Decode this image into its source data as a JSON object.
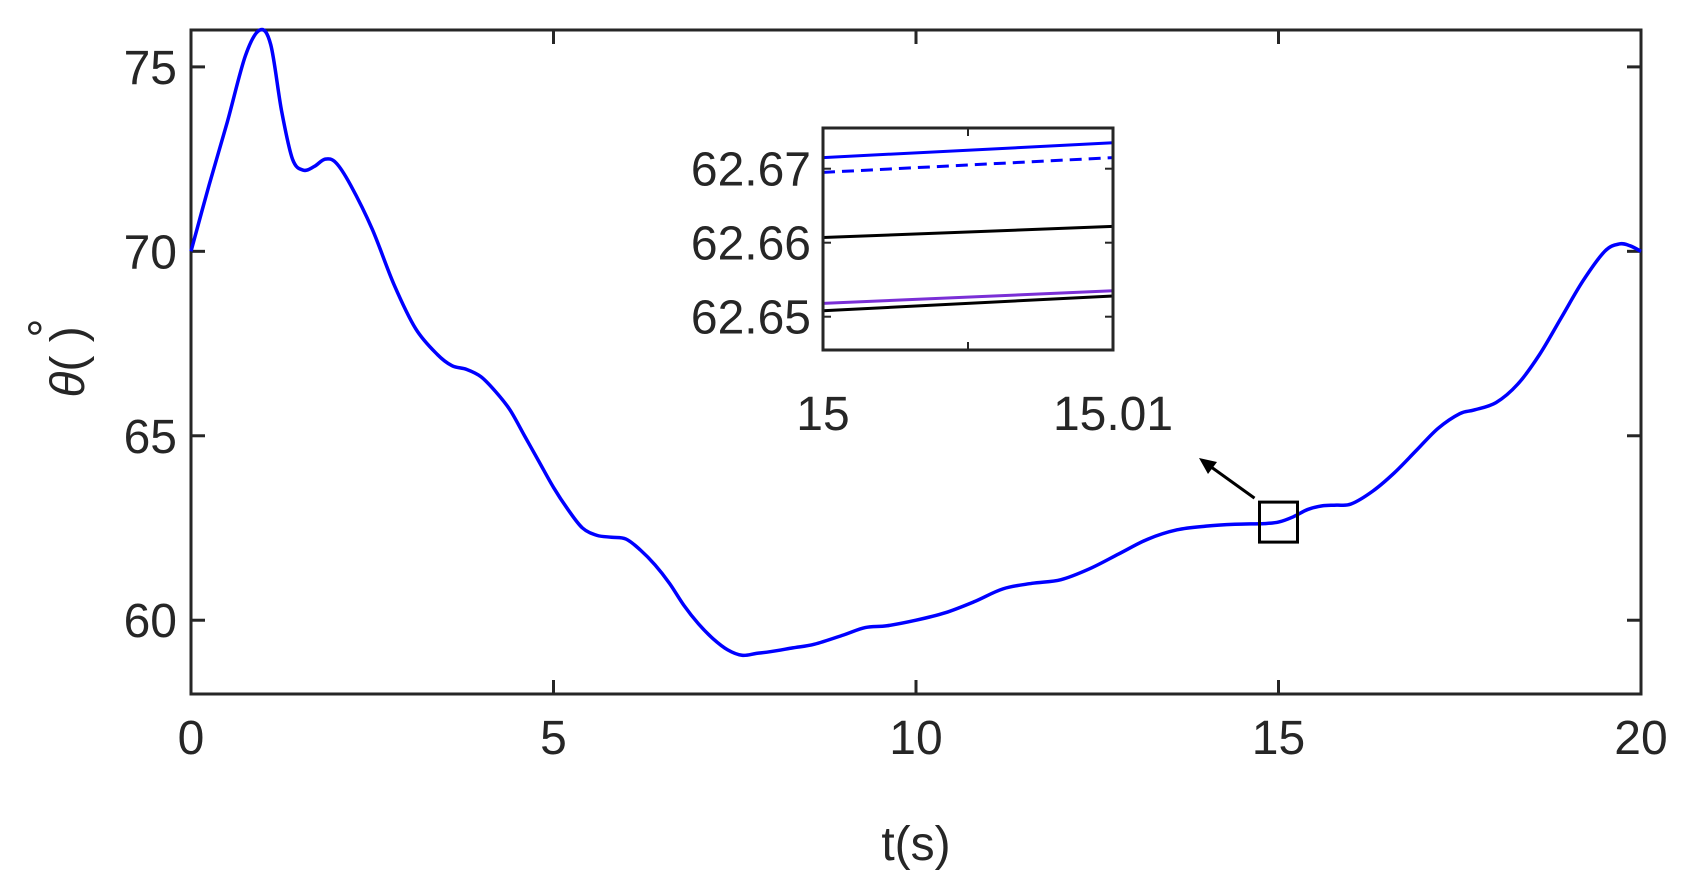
{
  "colors": {
    "series_blue": "#0000ff",
    "axis": "#262626",
    "black_line": "#000000",
    "purple_line": "#7a2fd6"
  },
  "chart_data": [
    {
      "type": "line",
      "title": "",
      "xlabel": "t(s)",
      "ylabel": "θ(°)",
      "ylabel_symbol": "θ",
      "ylabel_rest": "( )",
      "ylabel_degree": "°",
      "xlim": [
        0,
        20
      ],
      "ylim": [
        58,
        76
      ],
      "xticks": [
        0,
        5,
        10,
        15,
        20
      ],
      "xtick_labels": [
        "0",
        "5",
        "10",
        "15",
        "20"
      ],
      "yticks": [
        60,
        65,
        70,
        75
      ],
      "ytick_labels": [
        "60",
        "65",
        "70",
        "75"
      ],
      "grid": false,
      "legend": "none",
      "series": [
        {
          "color": "#0000ff",
          "style": "solid",
          "x": [
            0,
            0.25,
            0.5,
            0.75,
            0.95,
            1.1,
            1.25,
            1.4,
            1.55,
            1.7,
            1.85,
            2.0,
            2.2,
            2.5,
            2.8,
            3.1,
            3.4,
            3.6,
            3.8,
            4.0,
            4.2,
            4.4,
            4.6,
            4.8,
            5.0,
            5.2,
            5.4,
            5.6,
            5.8,
            6.0,
            6.2,
            6.4,
            6.6,
            6.8,
            7.0,
            7.2,
            7.4,
            7.6,
            7.8,
            8.0,
            8.3,
            8.6,
            9.0,
            9.3,
            9.6,
            10.0,
            10.4,
            10.8,
            11.2,
            11.6,
            12.0,
            12.4,
            12.8,
            13.2,
            13.6,
            14.0,
            14.4,
            14.8,
            15.0,
            15.2,
            15.4,
            15.6,
            15.8,
            16.0,
            16.3,
            16.6,
            16.9,
            17.2,
            17.5,
            17.7,
            18.0,
            18.3,
            18.6,
            18.9,
            19.2,
            19.5,
            19.7,
            19.85,
            20.0
          ],
          "y": [
            70.0,
            71.8,
            73.5,
            75.3,
            76.0,
            75.6,
            73.8,
            72.5,
            72.2,
            72.3,
            72.5,
            72.4,
            71.8,
            70.6,
            69.1,
            67.9,
            67.2,
            66.9,
            66.8,
            66.6,
            66.2,
            65.7,
            65.0,
            64.3,
            63.6,
            63.0,
            62.5,
            62.3,
            62.25,
            62.2,
            61.9,
            61.5,
            61.0,
            60.4,
            59.9,
            59.5,
            59.2,
            59.05,
            59.1,
            59.15,
            59.25,
            59.35,
            59.6,
            59.8,
            59.85,
            60.0,
            60.2,
            60.5,
            60.85,
            61.0,
            61.1,
            61.4,
            61.8,
            62.2,
            62.45,
            62.55,
            62.6,
            62.62,
            62.66,
            62.8,
            63.0,
            63.1,
            63.12,
            63.15,
            63.5,
            64.0,
            64.6,
            65.2,
            65.6,
            65.7,
            65.9,
            66.4,
            67.2,
            68.2,
            69.2,
            70.0,
            70.2,
            70.15,
            70.0
          ]
        }
      ],
      "annotation": {
        "zoom_box_center": [
          15,
          62.66
        ],
        "arrow": "points from zoom box toward inset"
      }
    },
    {
      "type": "line",
      "role": "inset",
      "xlim": [
        15,
        15.01
      ],
      "ylim": [
        62.6455,
        62.6755
      ],
      "xticks": [
        15,
        15.01
      ],
      "xtick_labels": [
        "15",
        "15.01"
      ],
      "yticks": [
        62.65,
        62.66,
        62.67
      ],
      "ytick_labels": [
        "62.65",
        "62.66",
        "62.67"
      ],
      "grid": false,
      "series": [
        {
          "color": "#0000ff",
          "style": "solid",
          "x": [
            15,
            15.01
          ],
          "y": [
            62.6715,
            62.6735
          ]
        },
        {
          "color": "#0000ff",
          "style": "dashed",
          "x": [
            15,
            15.01
          ],
          "y": [
            62.6695,
            62.6715
          ]
        },
        {
          "color": "#000000",
          "style": "solid",
          "x": [
            15,
            15.01
          ],
          "y": [
            62.6607,
            62.6622
          ]
        },
        {
          "color": "#7a2fd6",
          "style": "solid",
          "x": [
            15,
            15.01
          ],
          "y": [
            62.6518,
            62.6535
          ]
        },
        {
          "color": "#000000",
          "style": "solid",
          "x": [
            15,
            15.01
          ],
          "y": [
            62.6508,
            62.6528
          ]
        }
      ]
    }
  ]
}
